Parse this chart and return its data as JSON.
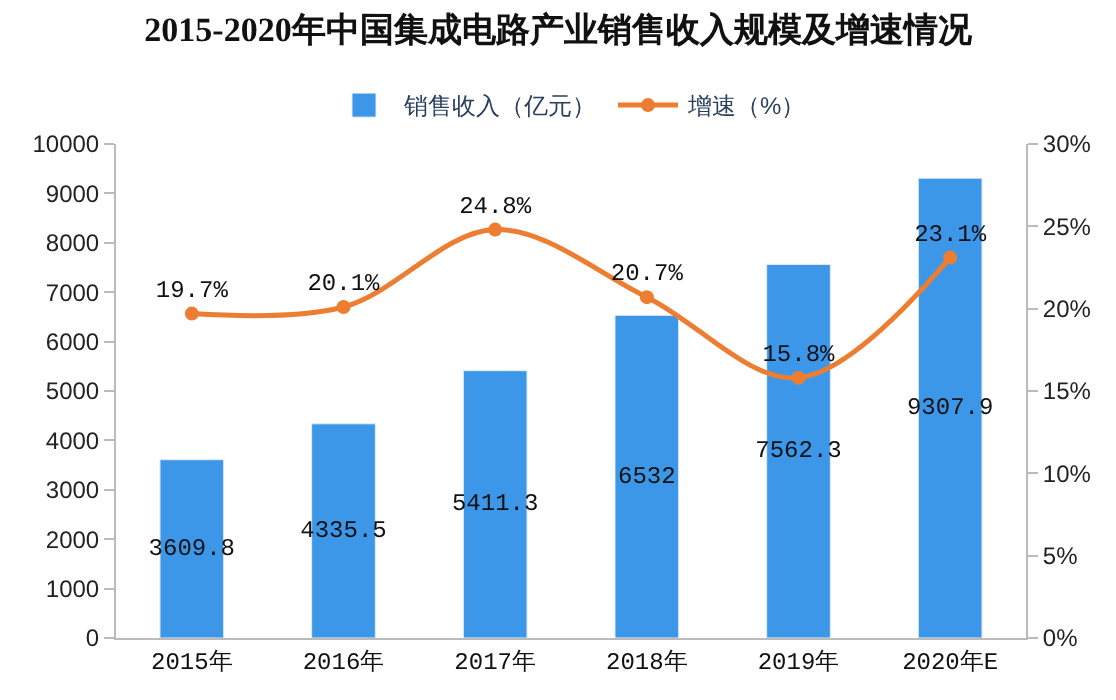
{
  "chart_data": {
    "type": "bar",
    "title": "2015-2020年中国集成电路产业销售收入规模及增速情况",
    "categories": [
      "2015年",
      "2016年",
      "2017年",
      "2018年",
      "2019年",
      "2020年E"
    ],
    "series": [
      {
        "name": "销售收入（亿元）",
        "color": "#3d97e8",
        "values": [
          3609.8,
          4335.5,
          5411.3,
          6532,
          7562.3,
          9307.9
        ],
        "value_labels": [
          "3609.8",
          "4335.5",
          "5411.3",
          "6532",
          "7562.3",
          "9307.9"
        ]
      },
      {
        "name": "增速（%）",
        "type": "line",
        "axis": "y2",
        "color": "#ed7d31",
        "marker": "circle",
        "values": [
          19.7,
          20.1,
          24.8,
          20.7,
          15.8,
          23.1
        ],
        "value_labels": [
          "19.7%",
          "20.1%",
          "24.8%",
          "20.7%",
          "15.8%",
          "23.1%"
        ]
      }
    ],
    "ylim": [
      0,
      10000
    ],
    "yticks": [
      0,
      1000,
      2000,
      3000,
      4000,
      5000,
      6000,
      7000,
      8000,
      9000,
      10000
    ],
    "y2lim": [
      0,
      30
    ],
    "y2ticks": [
      {
        "value": 0,
        "label": "0%"
      },
      {
        "value": 5,
        "label": "5%"
      },
      {
        "value": 10,
        "label": "10%"
      },
      {
        "value": 15,
        "label": "15%"
      },
      {
        "value": 20,
        "label": "20%"
      },
      {
        "value": 25,
        "label": "25%"
      },
      {
        "value": 30,
        "label": "30%"
      }
    ],
    "legend": "top"
  }
}
